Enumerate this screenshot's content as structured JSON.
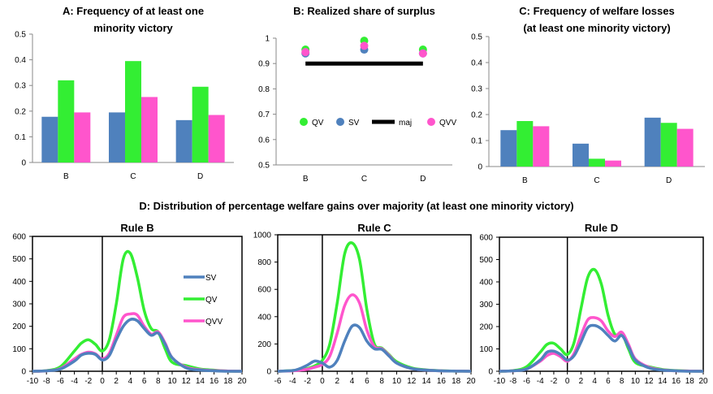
{
  "colors": {
    "sv": "#4F81BD",
    "qv": "#33EE33",
    "qvv": "#FF55CC",
    "maj": "#000000"
  },
  "section_title": "D: Distribution of percentage welfare gains over majority (at least one minority victory)",
  "chart_data": [
    {
      "id": "A",
      "type": "bar",
      "title_lines": [
        "A: Frequency of at least one",
        "minority victory"
      ],
      "categories": [
        "B",
        "C",
        "D"
      ],
      "series": [
        {
          "key": "sv",
          "values": [
            0.178,
            0.195,
            0.165
          ]
        },
        {
          "key": "qv",
          "values": [
            0.32,
            0.395,
            0.295
          ]
        },
        {
          "key": "qvv",
          "values": [
            0.195,
            0.255,
            0.185
          ]
        }
      ],
      "ylim": [
        0,
        0.5
      ],
      "yticks": [
        0,
        0.1,
        0.2,
        0.3,
        0.4,
        0.5
      ],
      "ytick_labels": [
        "0",
        "0.1",
        "0.2",
        "0.3",
        "0.4",
        "0.5"
      ],
      "grid": false
    },
    {
      "id": "B",
      "type": "scatter",
      "title_lines": [
        "B: Realized share of surplus"
      ],
      "categories": [
        "B",
        "C",
        "D"
      ],
      "series": [
        {
          "key": "qv",
          "name": "QV",
          "values": [
            0.955,
            0.99,
            0.955
          ]
        },
        {
          "key": "sv",
          "name": "SV",
          "values": [
            0.94,
            0.955,
            0.94
          ]
        },
        {
          "key": "qvv",
          "name": "QVV",
          "values": [
            0.945,
            0.97,
            0.94
          ]
        },
        {
          "key": "maj",
          "name": "maj",
          "values": [
            0.9,
            0.9,
            0.9
          ],
          "style": "line"
        }
      ],
      "legend_order": [
        "qv",
        "sv",
        "maj",
        "qvv"
      ],
      "legend_position": "center",
      "ylim": [
        0.5,
        1.0
      ],
      "yticks": [
        0.5,
        0.6,
        0.7,
        0.8,
        0.9,
        1.0
      ],
      "ytick_labels": [
        "0.5",
        "0.6",
        "0.7",
        "0.8",
        "0.9",
        "1"
      ],
      "grid": false
    },
    {
      "id": "C",
      "type": "bar",
      "title_lines": [
        "C: Frequency of welfare losses",
        "(at least one minority victory)"
      ],
      "categories": [
        "B",
        "C",
        "D"
      ],
      "series": [
        {
          "key": "sv",
          "values": [
            0.14,
            0.088,
            0.188
          ]
        },
        {
          "key": "qv",
          "values": [
            0.175,
            0.03,
            0.168
          ]
        },
        {
          "key": "qvv",
          "values": [
            0.155,
            0.023,
            0.145
          ]
        }
      ],
      "ylim": [
        0,
        0.5
      ],
      "yticks": [
        0,
        0.1,
        0.2,
        0.3,
        0.4,
        0.5
      ],
      "ytick_labels": [
        "0",
        "0.1",
        "0.2",
        "0.3",
        "0.4",
        "0.5"
      ],
      "grid": false
    },
    {
      "id": "DB",
      "type": "line",
      "title_lines": [
        "Rule B"
      ],
      "x": [
        -10,
        -8,
        -6,
        -4,
        -3,
        -2,
        -1,
        0,
        1,
        2,
        3,
        4,
        5,
        6,
        7,
        8,
        9,
        10,
        12,
        14,
        16,
        18,
        20
      ],
      "series": [
        {
          "key": "sv",
          "name": "SV",
          "values": [
            0,
            2,
            10,
            45,
            72,
            80,
            75,
            50,
            70,
            140,
            200,
            230,
            225,
            190,
            160,
            170,
            120,
            60,
            15,
            5,
            2,
            0,
            0
          ]
        },
        {
          "key": "qv",
          "name": "QV",
          "values": [
            0,
            3,
            20,
            90,
            125,
            140,
            120,
            90,
            140,
            300,
            500,
            525,
            420,
            270,
            190,
            175,
            100,
            40,
            25,
            10,
            5,
            1,
            0
          ]
        },
        {
          "key": "qvv",
          "name": "QVV",
          "values": [
            0,
            2,
            12,
            55,
            75,
            85,
            78,
            55,
            80,
            160,
            240,
            255,
            250,
            200,
            165,
            175,
            125,
            60,
            18,
            7,
            3,
            1,
            0
          ]
        }
      ],
      "legend_order": [
        "sv",
        "qv",
        "qvv"
      ],
      "legend_position": "center",
      "xlim": [
        -10,
        20
      ],
      "ylim": [
        0,
        600
      ],
      "xticks": [
        -10,
        -8,
        -6,
        -4,
        -2,
        0,
        2,
        4,
        6,
        8,
        10,
        12,
        14,
        16,
        18,
        20
      ],
      "xtick_labels": [
        "-10",
        "-8",
        "-6",
        "-4",
        "-2",
        "0",
        "2",
        "4",
        "6",
        "8",
        "10",
        "12",
        "14",
        "16",
        "18",
        "20"
      ],
      "yticks": [
        0,
        100,
        200,
        300,
        400,
        500,
        600
      ],
      "ytick_labels": [
        "0",
        "100",
        "200",
        "300",
        "400",
        "500",
        "600"
      ],
      "vline_x": 0,
      "grid": false
    },
    {
      "id": "DC",
      "type": "line",
      "title_lines": [
        "Rule C"
      ],
      "x": [
        -6,
        -4,
        -3,
        -2,
        -1,
        0,
        1,
        2,
        3,
        4,
        5,
        6,
        7,
        8,
        9,
        10,
        12,
        14,
        16,
        18,
        20
      ],
      "series": [
        {
          "key": "sv",
          "name": "SV",
          "values": [
            0,
            5,
            20,
            45,
            75,
            60,
            30,
            80,
            220,
            330,
            320,
            220,
            165,
            160,
            110,
            60,
            20,
            8,
            3,
            1,
            0
          ]
        },
        {
          "key": "qv",
          "name": "QV",
          "values": [
            0,
            5,
            10,
            20,
            40,
            80,
            200,
            500,
            860,
            940,
            820,
            450,
            200,
            170,
            120,
            70,
            25,
            10,
            4,
            1,
            0
          ]
        },
        {
          "key": "qvv",
          "name": "QVV",
          "values": [
            0,
            3,
            8,
            15,
            30,
            50,
            110,
            280,
            480,
            560,
            500,
            300,
            180,
            165,
            115,
            60,
            20,
            8,
            3,
            1,
            0
          ]
        }
      ],
      "xlim": [
        -6,
        20
      ],
      "ylim": [
        0,
        1000
      ],
      "xticks": [
        -6,
        -4,
        -2,
        0,
        2,
        4,
        6,
        8,
        10,
        12,
        14,
        16,
        18,
        20
      ],
      "xtick_labels": [
        "-6",
        "-4",
        "-2",
        "0",
        "2",
        "4",
        "6",
        "8",
        "10",
        "12",
        "14",
        "16",
        "18",
        "20"
      ],
      "yticks": [
        0,
        200,
        400,
        600,
        800,
        1000
      ],
      "ytick_labels": [
        "0",
        "200",
        "400",
        "600",
        "800",
        "1000"
      ],
      "vline_x": 0,
      "grid": false
    },
    {
      "id": "DD",
      "type": "line",
      "title_lines": [
        "Rule D"
      ],
      "x": [
        -10,
        -8,
        -6,
        -4,
        -3,
        -2,
        -1,
        0,
        1,
        2,
        3,
        4,
        5,
        6,
        7,
        8,
        9,
        10,
        12,
        14,
        16,
        18,
        20
      ],
      "series": [
        {
          "key": "sv",
          "name": "SV",
          "values": [
            0,
            2,
            10,
            50,
            85,
            90,
            75,
            50,
            70,
            130,
            195,
            205,
            190,
            160,
            135,
            160,
            110,
            50,
            15,
            5,
            2,
            0,
            0
          ]
        },
        {
          "key": "qv",
          "name": "QV",
          "values": [
            0,
            3,
            20,
            85,
            120,
            125,
            100,
            75,
            130,
            280,
            420,
            455,
            390,
            250,
            165,
            170,
            100,
            40,
            20,
            8,
            3,
            1,
            0
          ]
        },
        {
          "key": "qvv",
          "name": "QVV",
          "values": [
            0,
            2,
            10,
            45,
            70,
            80,
            65,
            45,
            80,
            160,
            230,
            240,
            225,
            180,
            155,
            175,
            120,
            55,
            18,
            6,
            2,
            1,
            0
          ]
        }
      ],
      "xlim": [
        -10,
        20
      ],
      "ylim": [
        0,
        600
      ],
      "xticks": [
        -10,
        -8,
        -6,
        -4,
        -2,
        0,
        2,
        4,
        6,
        8,
        10,
        12,
        14,
        16,
        18,
        20
      ],
      "xtick_labels": [
        "-10",
        "-8",
        "-6",
        "-4",
        "-2",
        "0",
        "2",
        "4",
        "6",
        "8",
        "10",
        "12",
        "14",
        "16",
        "18",
        "20"
      ],
      "yticks": [
        0,
        100,
        200,
        300,
        400,
        500,
        600
      ],
      "ytick_labels": [
        "0",
        "100",
        "200",
        "300",
        "400",
        "500",
        "600"
      ],
      "vline_x": 0,
      "grid": false
    }
  ]
}
